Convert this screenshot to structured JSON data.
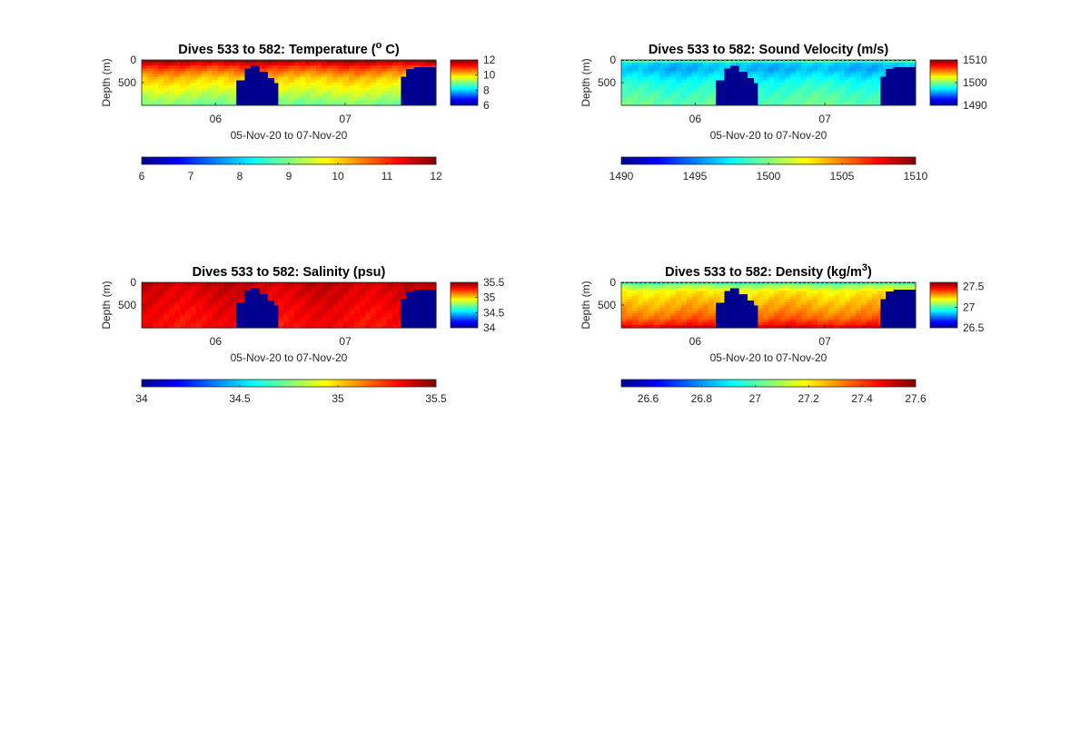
{
  "colors": {
    "jet": [
      "#00008f",
      "#0000ff",
      "#0080ff",
      "#00ffff",
      "#80ff80",
      "#ffff00",
      "#ff8000",
      "#ff0000",
      "#800000"
    ],
    "no_data": "#00008f"
  },
  "chart_data": [
    {
      "type": "heatmap",
      "title_main": "Dives 533 to 582: Temperature (",
      "title_sup": "o",
      "title_tail": " C)",
      "xlabel": "05-Nov-20 to 07-Nov-20",
      "ylabel": "Depth (m)",
      "xticks": [
        "06",
        "07"
      ],
      "xtick_positions_days": [
        1,
        2
      ],
      "xlim_days": [
        0.43,
        2.7
      ],
      "yticks": [
        "0",
        "500"
      ],
      "ytick_values": [
        0,
        500
      ],
      "ylim_m": [
        0,
        1000
      ],
      "vertical_bar": {
        "ticks": [
          "12",
          "10",
          "8",
          "6"
        ],
        "values": [
          12,
          10,
          8,
          6
        ],
        "clim": [
          6,
          12
        ]
      },
      "horizontal_bar": {
        "ticks": [
          "6",
          "7",
          "8",
          "9",
          "10",
          "11",
          "12"
        ],
        "values": [
          6,
          7,
          8,
          9,
          10,
          11,
          12
        ],
        "clim": [
          6,
          12
        ]
      },
      "profile_fraction": [
        0,
        0.08,
        0.15,
        0.25,
        0.4,
        0.55,
        0.7,
        0.85,
        1
      ],
      "profile_values": [
        11.9,
        11.4,
        11.0,
        10.6,
        10.1,
        9.8,
        9.5,
        9.2,
        8.9
      ]
    },
    {
      "type": "heatmap",
      "title_main": "Dives 533 to 582: Sound Velocity (m/s)",
      "title_sup": "",
      "title_tail": "",
      "xlabel": "05-Nov-20 to 07-Nov-20",
      "ylabel": "Depth (m)",
      "xticks": [
        "06",
        "07"
      ],
      "xtick_positions_days": [
        1,
        2
      ],
      "xlim_days": [
        0.43,
        2.7
      ],
      "yticks": [
        "0",
        "500"
      ],
      "ytick_values": [
        0,
        500
      ],
      "ylim_m": [
        0,
        1000
      ],
      "vertical_bar": {
        "ticks": [
          "1510",
          "1500",
          "1490"
        ],
        "values": [
          1510,
          1500,
          1490
        ],
        "clim": [
          1490,
          1510
        ]
      },
      "horizontal_bar": {
        "ticks": [
          "1490",
          "1495",
          "1500",
          "1505",
          "1510"
        ],
        "values": [
          1490,
          1495,
          1500,
          1505,
          1510
        ],
        "clim": [
          1490,
          1510
        ]
      },
      "profile_fraction": [
        0,
        0.08,
        0.2,
        0.35,
        0.5,
        0.65,
        0.8,
        1
      ],
      "profile_values": [
        1499.5,
        1496.5,
        1496.0,
        1497.0,
        1498.0,
        1498.5,
        1499.0,
        1499.5
      ]
    },
    {
      "type": "heatmap",
      "title_main": "Dives 533 to 582: Salinity (psu)",
      "title_sup": "",
      "title_tail": "",
      "xlabel": "05-Nov-20 to 07-Nov-20",
      "ylabel": "Depth (m)",
      "xticks": [
        "06",
        "07"
      ],
      "xtick_positions_days": [
        1,
        2
      ],
      "xlim_days": [
        0.43,
        2.7
      ],
      "yticks": [
        "0",
        "500"
      ],
      "ytick_values": [
        0,
        500
      ],
      "ylim_m": [
        0,
        1000
      ],
      "vertical_bar": {
        "ticks": [
          "35.5",
          "35",
          "34.5",
          "34"
        ],
        "values": [
          35.5,
          35,
          34.5,
          34
        ],
        "clim": [
          34,
          35.5
        ]
      },
      "horizontal_bar": {
        "ticks": [
          "34",
          "34.5",
          "35",
          "35.5"
        ],
        "values": [
          34,
          34.5,
          35,
          35.5
        ],
        "clim": [
          34,
          35.5
        ]
      },
      "profile_fraction": [
        0,
        0.1,
        0.3,
        0.6,
        1
      ],
      "profile_values": [
        35.42,
        35.38,
        35.36,
        35.33,
        35.3
      ]
    },
    {
      "type": "heatmap",
      "title_main": "Dives 533 to 582: Density (kg/m",
      "title_sup": "3",
      "title_tail": ")",
      "xlabel": "05-Nov-20 to 07-Nov-20",
      "ylabel": "Depth (m)",
      "xticks": [
        "06",
        "07"
      ],
      "xtick_positions_days": [
        1,
        2
      ],
      "xlim_days": [
        0.43,
        2.7
      ],
      "yticks": [
        "0",
        "500"
      ],
      "ytick_values": [
        0,
        500
      ],
      "ylim_m": [
        0,
        1000
      ],
      "vertical_bar": {
        "ticks": [
          "27.5",
          "27",
          "26.5"
        ],
        "values": [
          27.5,
          27,
          26.5
        ],
        "clim": [
          26.5,
          27.6
        ]
      },
      "horizontal_bar": {
        "ticks": [
          "26.6",
          "26.8",
          "27",
          "27.2",
          "27.4",
          "27.6"
        ],
        "values": [
          26.6,
          26.8,
          27,
          27.2,
          27.4,
          27.6
        ],
        "clim": [
          26.5,
          27.6
        ]
      },
      "profile_fraction": [
        0,
        0.08,
        0.2,
        0.4,
        0.6,
        0.8,
        0.9,
        1
      ],
      "profile_values": [
        26.95,
        27.08,
        27.2,
        27.25,
        27.3,
        27.36,
        27.42,
        27.5
      ]
    }
  ],
  "no_data_regions": {
    "blocks": [
      {
        "x_days": [
          1.16,
          1.225
        ],
        "depth_top_m": 450
      },
      {
        "x_days": [
          1.225,
          1.27
        ],
        "depth_top_m": 190
      },
      {
        "x_days": [
          1.27,
          1.335
        ],
        "depth_top_m": 130
      },
      {
        "x_days": [
          1.335,
          1.4
        ],
        "depth_top_m": 260
      },
      {
        "x_days": [
          1.4,
          1.45
        ],
        "depth_top_m": 400
      },
      {
        "x_days": [
          1.45,
          1.48
        ],
        "depth_top_m": 510
      },
      {
        "x_days": [
          2.43,
          2.47
        ],
        "depth_top_m": 370
      },
      {
        "x_days": [
          2.47,
          2.53
        ],
        "depth_top_m": 200
      },
      {
        "x_days": [
          2.53,
          2.7
        ],
        "depth_top_m": 160
      }
    ]
  }
}
